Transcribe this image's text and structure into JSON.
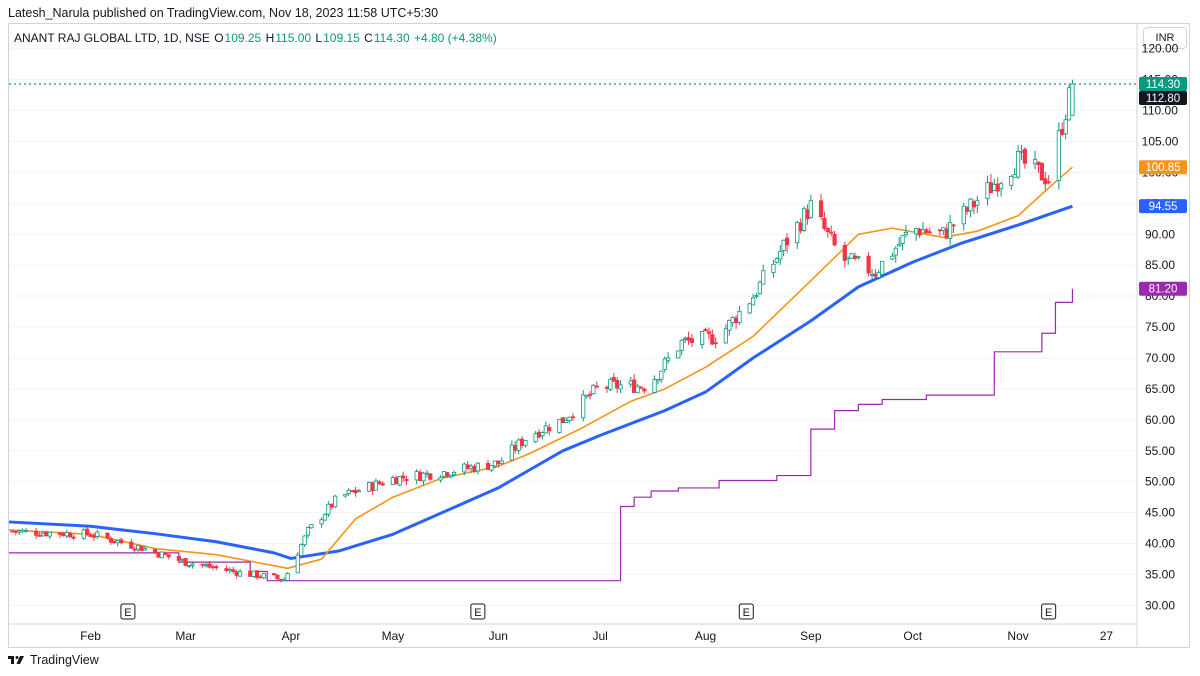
{
  "header": {
    "published_line": "Latesh_Narula published on TradingView.com, Nov 18, 2023 11:58 UTC+5:30"
  },
  "legend": {
    "symbol": "ANANT RAJ GLOBAL LTD, 1D, NSE",
    "o_label": "O",
    "o_value": "109.25",
    "h_label": "H",
    "h_value": "115.00",
    "l_label": "L",
    "l_value": "109.15",
    "c_label": "C",
    "c_value": "114.30",
    "change": "+4.80 (+4.38%)"
  },
  "currency_button": "INR",
  "footer": {
    "brand": "TradingView"
  },
  "colors": {
    "up": "#089981",
    "down": "#f23645",
    "ema_fast": "#f7931a",
    "ema_slow": "#2962ff",
    "trail": "#9c27b0",
    "grid": "#f0f3fa"
  },
  "chart_data": {
    "type": "candlestick",
    "y_axis": {
      "ticks": [
        30,
        35,
        40,
        45,
        50,
        55,
        60,
        65,
        70,
        75,
        80,
        85,
        90,
        95,
        100,
        105,
        110,
        115,
        120
      ],
      "tick_labels": [
        "30.00",
        "35.00",
        "40.00",
        "45.00",
        "50.00",
        "55.00",
        "60.00",
        "65.00",
        "70.00",
        "75.00",
        "80.00",
        "85.00",
        "90.00",
        "95.00",
        "100.00",
        "105.00",
        "110.00",
        "115.00",
        "120.00"
      ],
      "range": [
        27,
        124
      ]
    },
    "x_axis": {
      "labels": [
        "Feb",
        "Mar",
        "Apr",
        "May",
        "Jun",
        "Jul",
        "Aug",
        "Sep",
        "Oct",
        "Nov",
        "27"
      ],
      "label_dates": [
        "2023-02-01",
        "2023-03-01",
        "2023-04-01",
        "2023-05-01",
        "2023-06-01",
        "2023-07-01",
        "2023-08-01",
        "2023-09-01",
        "2023-10-01",
        "2023-11-01",
        "2023-11-27"
      ],
      "range": [
        "2023-01-08",
        "2023-12-06"
      ]
    },
    "earnings_markers": {
      "label": "E",
      "dates": [
        "2023-02-12",
        "2023-05-26",
        "2023-08-13",
        "2023-11-10"
      ]
    },
    "last_bar": {
      "date": "2023-11-17",
      "open": 109.25,
      "high": 115.0,
      "low": 109.15,
      "close": 114.3
    },
    "price_line": 114.3,
    "badges": [
      {
        "label": "114.30",
        "value": 114.3,
        "color": "#089981"
      },
      {
        "label": "112.80",
        "value": 112.8,
        "color": "#131722"
      },
      {
        "label": "100.85",
        "value": 100.85,
        "color": "#f7931a"
      },
      {
        "label": "94.55",
        "value": 94.55,
        "color": "#2962ff"
      },
      {
        "label": "81.20",
        "value": 81.2,
        "color": "#9c27b0"
      }
    ],
    "series": [
      {
        "kind": "line",
        "color": "#2962ff",
        "points": [
          [
            "2023-01-08",
            43.5
          ],
          [
            "2023-02-01",
            42.8
          ],
          [
            "2023-02-20",
            41.6
          ],
          [
            "2023-03-10",
            40.3
          ],
          [
            "2023-03-27",
            38.5
          ],
          [
            "2023-04-01",
            37.6
          ],
          [
            "2023-04-15",
            38.8
          ],
          [
            "2023-05-01",
            41.5
          ],
          [
            "2023-06-01",
            49.0
          ],
          [
            "2023-06-20",
            55.0
          ],
          [
            "2023-07-01",
            57.5
          ],
          [
            "2023-07-20",
            61.5
          ],
          [
            "2023-08-01",
            64.5
          ],
          [
            "2023-08-15",
            70.0
          ],
          [
            "2023-09-01",
            76.0
          ],
          [
            "2023-09-15",
            81.5
          ],
          [
            "2023-10-01",
            85.5
          ],
          [
            "2023-10-15",
            88.5
          ],
          [
            "2023-11-01",
            91.5
          ],
          [
            "2023-11-17",
            94.55
          ]
        ]
      },
      {
        "kind": "line",
        "color": "#f7931a",
        "points": [
          [
            "2023-01-08",
            42.2
          ],
          [
            "2023-02-01",
            41.5
          ],
          [
            "2023-02-20",
            39.2
          ],
          [
            "2023-03-10",
            38.2
          ],
          [
            "2023-03-31",
            36.0
          ],
          [
            "2023-04-10",
            37.5
          ],
          [
            "2023-04-20",
            44.0
          ],
          [
            "2023-05-01",
            47.5
          ],
          [
            "2023-05-15",
            50.5
          ],
          [
            "2023-06-01",
            52.5
          ],
          [
            "2023-06-10",
            54.5
          ],
          [
            "2023-06-25",
            58.5
          ],
          [
            "2023-07-10",
            63.0
          ],
          [
            "2023-07-20",
            65.0
          ],
          [
            "2023-08-01",
            68.5
          ],
          [
            "2023-08-15",
            73.5
          ],
          [
            "2023-09-01",
            82.5
          ],
          [
            "2023-09-15",
            90.0
          ],
          [
            "2023-09-25",
            91.0
          ],
          [
            "2023-10-10",
            89.5
          ],
          [
            "2023-10-20",
            90.5
          ],
          [
            "2023-11-01",
            93.0
          ],
          [
            "2023-11-10",
            97.5
          ],
          [
            "2023-11-17",
            100.85
          ]
        ]
      },
      {
        "kind": "step",
        "color": "#9c27b0",
        "points": [
          [
            "2023-01-08",
            38.5
          ],
          [
            "2023-02-20",
            38.5
          ],
          [
            "2023-02-27",
            37.0
          ],
          [
            "2023-03-05",
            37.0
          ],
          [
            "2023-03-20",
            35.5
          ],
          [
            "2023-03-25",
            34.0
          ],
          [
            "2023-07-02",
            34.0
          ],
          [
            "2023-07-07",
            46.0
          ],
          [
            "2023-07-11",
            47.5
          ],
          [
            "2023-07-16",
            48.5
          ],
          [
            "2023-07-24",
            49.0
          ],
          [
            "2023-08-05",
            50.2
          ],
          [
            "2023-08-22",
            51.0
          ],
          [
            "2023-09-01",
            58.5
          ],
          [
            "2023-09-08",
            61.5
          ],
          [
            "2023-09-15",
            62.5
          ],
          [
            "2023-09-22",
            63.3
          ],
          [
            "2023-10-05",
            64.0
          ],
          [
            "2023-10-20",
            64.0
          ],
          [
            "2023-10-25",
            71.0
          ],
          [
            "2023-11-06",
            71.0
          ],
          [
            "2023-11-08",
            74.0
          ],
          [
            "2023-11-12",
            79.0
          ],
          [
            "2023-11-17",
            81.2
          ]
        ]
      }
    ],
    "candle_anchors": [
      [
        "2023-01-08",
        42
      ],
      [
        "2023-02-01",
        41.5
      ],
      [
        "2023-02-15",
        39.5
      ],
      [
        "2023-03-01",
        37.0
      ],
      [
        "2023-03-15",
        35.5
      ],
      [
        "2023-03-30",
        34.2
      ],
      [
        "2023-04-06",
        42
      ],
      [
        "2023-04-15",
        47.5
      ],
      [
        "2023-05-01",
        50.5
      ],
      [
        "2023-05-15",
        51.5
      ],
      [
        "2023-06-01",
        53.0
      ],
      [
        "2023-06-10",
        57.5
      ],
      [
        "2023-06-20",
        60.0
      ],
      [
        "2023-07-01",
        65.5
      ],
      [
        "2023-07-15",
        65.5
      ],
      [
        "2023-07-25",
        72.5
      ],
      [
        "2023-08-05",
        73.5
      ],
      [
        "2023-08-15",
        80.0
      ],
      [
        "2023-08-25",
        89.0
      ],
      [
        "2023-09-01",
        94.5
      ],
      [
        "2023-09-10",
        86.0
      ],
      [
        "2023-09-20",
        84.0
      ],
      [
        "2023-10-01",
        91.0
      ],
      [
        "2023-10-10",
        90.0
      ],
      [
        "2023-10-20",
        95.5
      ],
      [
        "2023-11-01",
        102.0
      ],
      [
        "2023-11-10",
        99.0
      ],
      [
        "2023-11-17",
        114.3
      ]
    ]
  }
}
